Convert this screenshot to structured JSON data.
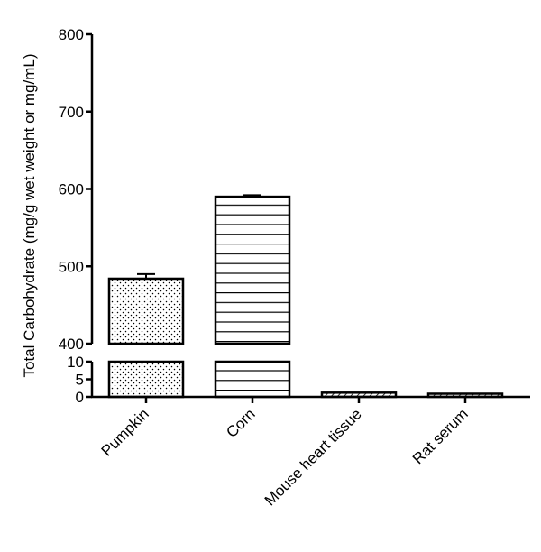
{
  "chart_data": {
    "type": "bar",
    "title": "",
    "xlabel": "",
    "ylabel": "Total Carbohydrate (mg/g wet weight or mg/mL)",
    "categories": [
      "Pumpkin",
      "Corn",
      "Mouse heart tissue",
      "Rat serum"
    ],
    "values": [
      484,
      590,
      1.2,
      0.9
    ],
    "errors": [
      6,
      2,
      0.1,
      0.1
    ],
    "patterns": [
      "dots",
      "horizontal-lines",
      "diagonal-hatch",
      "diagonal-hatch"
    ],
    "y_axis_break": true,
    "y_segments": {
      "lower": {
        "range": [
          0,
          10
        ],
        "ticks": [
          "0",
          "5",
          "10"
        ]
      },
      "upper": {
        "range": [
          400,
          800
        ],
        "ticks": [
          "400",
          "500",
          "600",
          "700",
          "800"
        ]
      }
    },
    "grid": false,
    "legend": "none"
  }
}
